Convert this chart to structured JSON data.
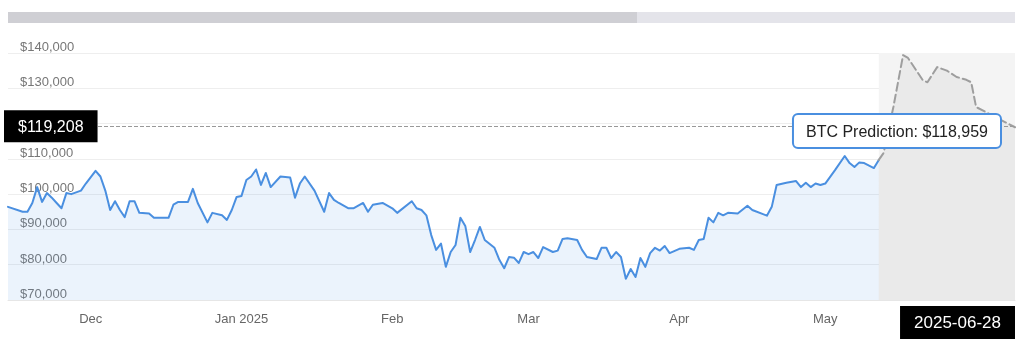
{
  "chart_data": {
    "type": "area",
    "x": [
      "2024-11-14",
      "2024-11-17",
      "2024-11-18",
      "2024-11-19",
      "2024-11-20",
      "2024-11-21",
      "2024-11-22",
      "2024-11-23",
      "2024-11-24",
      "2024-11-25",
      "2024-11-26",
      "2024-11-27",
      "2024-11-29",
      "2024-11-30",
      "2024-12-02",
      "2024-12-03",
      "2024-12-04",
      "2024-12-05",
      "2024-12-06",
      "2024-12-07",
      "2024-12-08",
      "2024-12-09",
      "2024-12-10",
      "2024-12-11",
      "2024-12-13",
      "2024-12-14",
      "2024-12-17",
      "2024-12-18",
      "2024-12-19",
      "2024-12-21",
      "2024-12-22",
      "2024-12-23",
      "2024-12-25",
      "2024-12-26",
      "2024-12-28",
      "2024-12-29",
      "2024-12-30",
      "2024-12-31",
      "2025-01-01",
      "2025-01-02",
      "2025-01-03",
      "2025-01-04",
      "2025-01-05",
      "2025-01-06",
      "2025-01-07",
      "2025-01-09",
      "2025-01-11",
      "2025-01-12",
      "2025-01-13",
      "2025-01-14",
      "2025-01-16",
      "2025-01-18",
      "2025-01-19",
      "2025-01-20",
      "2025-01-21",
      "2025-01-23",
      "2025-01-24",
      "2025-01-26",
      "2025-01-27",
      "2025-01-28",
      "2025-01-30",
      "2025-02-01",
      "2025-02-02",
      "2025-02-05",
      "2025-02-06",
      "2025-02-07",
      "2025-02-08",
      "2025-02-09",
      "2025-02-10",
      "2025-02-11",
      "2025-02-12",
      "2025-02-13",
      "2025-02-14",
      "2025-02-15",
      "2025-02-16",
      "2025-02-17",
      "2025-02-18",
      "2025-02-19",
      "2025-02-20",
      "2025-02-22",
      "2025-02-23",
      "2025-02-24",
      "2025-02-25",
      "2025-02-26",
      "2025-02-27",
      "2025-02-28",
      "2025-03-01",
      "2025-03-02",
      "2025-03-03",
      "2025-03-04",
      "2025-03-06",
      "2025-03-07",
      "2025-03-08",
      "2025-03-09",
      "2025-03-11",
      "2025-03-12",
      "2025-03-13",
      "2025-03-15",
      "2025-03-16",
      "2025-03-17",
      "2025-03-18",
      "2025-03-19",
      "2025-03-20",
      "2025-03-21",
      "2025-03-22",
      "2025-03-23",
      "2025-03-24",
      "2025-03-25",
      "2025-03-26",
      "2025-03-27",
      "2025-03-28",
      "2025-03-29",
      "2025-03-30",
      "2025-04-01",
      "2025-04-03",
      "2025-04-04",
      "2025-04-05",
      "2025-04-06",
      "2025-04-07",
      "2025-04-08",
      "2025-04-09",
      "2025-04-10",
      "2025-04-11",
      "2025-04-13",
      "2025-04-15",
      "2025-04-16",
      "2025-04-19",
      "2025-04-20",
      "2025-04-21",
      "2025-04-23",
      "2025-04-25",
      "2025-04-26",
      "2025-04-27",
      "2025-04-28",
      "2025-04-29",
      "2025-04-30",
      "2025-05-01",
      "2025-05-02",
      "2025-05-03",
      "2025-05-05",
      "2025-05-06",
      "2025-05-07",
      "2025-05-08",
      "2025-05-09",
      "2025-05-11",
      "2025-05-12"
    ],
    "series": [
      {
        "color": "#4a8fe0",
        "line_style": "solid",
        "values": [
          96400,
          95000,
          95000,
          97500,
          102000,
          97800,
          100300,
          99000,
          97500,
          96000,
          100300,
          100000,
          101000,
          103000,
          106600,
          105000,
          101000,
          95500,
          98000,
          95500,
          93500,
          98000,
          98000,
          94700,
          94500,
          93300,
          93300,
          97000,
          97800,
          97800,
          101500,
          97500,
          92000,
          94700,
          94000,
          92700,
          95500,
          99200,
          99500,
          104000,
          105000,
          107000,
          102600,
          106000,
          102000,
          105000,
          104700,
          99000,
          103000,
          105000,
          101000,
          95000,
          100300,
          98400,
          97500,
          96000,
          96000,
          97500,
          95000,
          97000,
          97500,
          96000,
          94700,
          98000,
          96000,
          95500,
          94000,
          88400,
          84200,
          86000,
          79400,
          83600,
          85600,
          93300,
          91000,
          83600,
          87000,
          90700,
          87000,
          84800,
          81400,
          79000,
          82200,
          82000,
          80500,
          83600,
          83000,
          83600,
          81900,
          85000,
          83600,
          84000,
          87300,
          87500,
          87000,
          84200,
          82200,
          81600,
          84800,
          84800,
          81900,
          83600,
          82200,
          76000,
          78800,
          76500,
          81900,
          79400,
          83300,
          84800,
          84000,
          85300,
          83300,
          84500,
          84800,
          84200,
          87000,
          87300,
          93300,
          92000,
          94700,
          94000,
          94700,
          94500,
          96700,
          95500,
          93900,
          96400,
          102600,
          103200,
          103700,
          102000,
          103200,
          102000,
          103000,
          102600,
          103000,
          104900,
          106800,
          110800,
          108800,
          107700,
          109000,
          108800,
          107400,
          109700
        ]
      },
      {
        "color": "#9e9e9e",
        "line_style": "dashed",
        "x": [
          "2025-05-12",
          "2025-05-13",
          "2025-05-15",
          "2025-05-17",
          "2025-05-18",
          "2025-05-21",
          "2025-05-22",
          "2025-05-24",
          "2025-05-26",
          "2025-05-28",
          "2025-05-30",
          "2025-05-31",
          "2025-06-01",
          "2025-06-09"
        ],
        "values": [
          109700,
          111700,
          124700,
          139400,
          138600,
          132400,
          131700,
          136000,
          135000,
          133200,
          132400,
          131700,
          124700,
          118959
        ]
      }
    ],
    "xlim": [
      "2024-11-14",
      "2025-06-09"
    ],
    "xticks": [
      {
        "value": "2024-12-01",
        "label": "Dec"
      },
      {
        "value": "2025-01-01",
        "label": "Jan 2025"
      },
      {
        "value": "2025-02-01",
        "label": "Feb"
      },
      {
        "value": "2025-03-01",
        "label": "Mar"
      },
      {
        "value": "2025-04-01",
        "label": "Apr"
      },
      {
        "value": "2025-05-01",
        "label": "May"
      }
    ],
    "ylim": [
      70000,
      140000
    ],
    "yticks": [
      {
        "value": 70000,
        "label": "$70,000"
      },
      {
        "value": 80000,
        "label": "$80,000"
      },
      {
        "value": 90000,
        "label": "$90,000"
      },
      {
        "value": 100000,
        "label": "$100,000"
      },
      {
        "value": 110000,
        "label": "$110,000"
      },
      {
        "value": 120000,
        "label": null
      },
      {
        "value": 130000,
        "label": "$130,000"
      },
      {
        "value": 140000,
        "label": "$140,000"
      }
    ],
    "grid": "y",
    "marker": "none",
    "ref_lines": [
      {
        "axis": "y",
        "value": 119208,
        "label": "$119,208",
        "color": "#999999",
        "line_style": "dashed"
      }
    ],
    "bands": [
      {
        "axis": "x",
        "from": "2025-05-12",
        "to": "2025-06-09",
        "color": "#f4f4f4"
      }
    ],
    "annotations": [
      "BTC Prediction: $118,959",
      "2025-06-28"
    ]
  }
}
